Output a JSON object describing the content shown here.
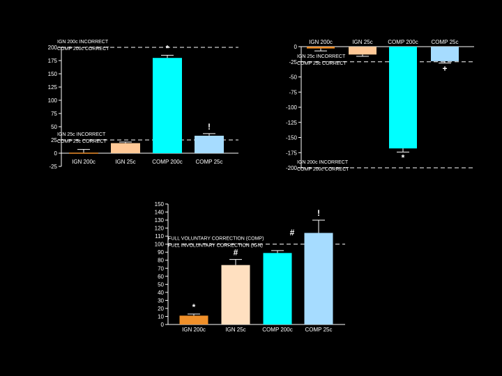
{
  "chart_data": [
    {
      "type": "bar",
      "categories": [
        "IGN 200c",
        "IGN 25c",
        "COMP 200c",
        "COMP 25c"
      ],
      "values": [
        1,
        19,
        180,
        33
      ],
      "errors": [
        6,
        2,
        5,
        4
      ],
      "colors": [
        "#f0902a",
        "#ffc896",
        "#00ffff",
        "#a6dcff"
      ],
      "marks": [
        "",
        "",
        "*",
        "!"
      ],
      "ylim": [
        -25,
        200
      ],
      "yticks": [
        -25,
        0,
        25,
        50,
        75,
        100,
        125,
        150,
        175,
        200
      ],
      "reference_lines": [
        {
          "y": 200,
          "labels": [
            "IGN 200c INCORRECT",
            "COMP 200c CORRECT"
          ]
        },
        {
          "y": 25,
          "labels": [
            "IGN 25c INCORRECT",
            "COMP 25c CORRECT"
          ]
        }
      ],
      "title": "",
      "xlabel": "",
      "ylabel": ""
    },
    {
      "type": "bar",
      "categories": [
        "IGN 200c",
        "IGN 25c",
        "COMP 200c",
        "COMP 25c"
      ],
      "values": [
        -3,
        -13,
        -168,
        -24
      ],
      "errors": [
        4,
        3,
        6,
        3
      ],
      "colors": [
        "#f0902a",
        "#ffc896",
        "#00ffff",
        "#a6dcff"
      ],
      "marks": [
        "",
        "",
        "*",
        "+"
      ],
      "ylim": [
        -200,
        0
      ],
      "yticks": [
        0,
        -25,
        -50,
        -75,
        -100,
        -125,
        -150,
        -175,
        -200
      ],
      "reference_lines": [
        {
          "y": -25,
          "labels": [
            "IGN 25c INCORRECT",
            "COMP 25c CORRECT"
          ]
        },
        {
          "y": -200,
          "labels": [
            "IGN 200c INCORRECT",
            "COMP 200c CORRECT"
          ]
        }
      ],
      "title": "",
      "xlabel": "",
      "ylabel": ""
    },
    {
      "type": "bar",
      "categories": [
        "IGN 200c",
        "IGN 25c",
        "COMP 200c",
        "COMP 25c"
      ],
      "values": [
        11,
        74,
        89,
        114
      ],
      "errors": [
        2,
        7,
        3,
        16
      ],
      "colors": [
        "#f0902a",
        "#ffe0c0",
        "#00ffff",
        "#a6dcff"
      ],
      "marks": [
        "*",
        "#",
        "",
        "!"
      ],
      "extra_marks": [
        {
          "text": "#",
          "x_cat": 2.35,
          "y": 111
        }
      ],
      "ylim": [
        0,
        150
      ],
      "yticks": [
        0,
        10,
        20,
        30,
        40,
        50,
        60,
        70,
        80,
        90,
        100,
        110,
        120,
        130,
        140,
        150
      ],
      "reference_lines": [
        {
          "y": 100,
          "labels": [
            "FULL VOLUNTARY CORRECTION (COMP)",
            "FULL INVOLUNTARY CORRECTION (IGN)"
          ]
        }
      ],
      "title": "",
      "xlabel": "",
      "ylabel": ""
    }
  ]
}
